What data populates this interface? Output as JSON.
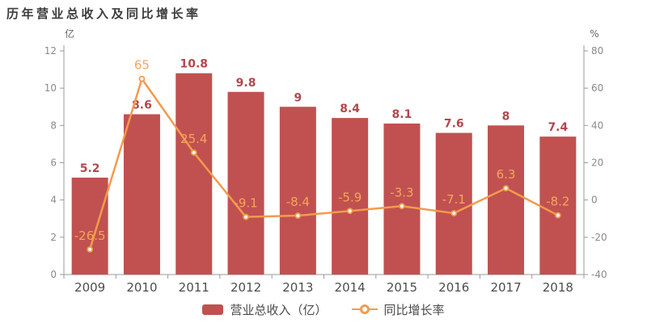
{
  "title": "历年营业总收入及同比增长率",
  "chart_data": {
    "type": "bar+line",
    "categories": [
      "2009",
      "2010",
      "2011",
      "2012",
      "2013",
      "2014",
      "2015",
      "2016",
      "2017",
      "2018"
    ],
    "series": [
      {
        "name": "营业总收入（亿）",
        "type": "bar",
        "axis": "left",
        "values": [
          5.2,
          8.6,
          10.8,
          9.8,
          9,
          8.4,
          8.1,
          7.6,
          8,
          7.4
        ],
        "color": "#c05150",
        "label_color": "#b1484d"
      },
      {
        "name": "同比增长率",
        "type": "line",
        "axis": "right",
        "values": [
          -26.5,
          65,
          25.4,
          -9.1,
          -8.4,
          -5.9,
          -3.3,
          -7.1,
          6.3,
          -8.2
        ],
        "color": "#f49a4c",
        "label_color": "#f7a55c",
        "marker": "circle-white-fill"
      }
    ],
    "left_axis": {
      "name": "亿",
      "min": 0,
      "max": 12,
      "ticks": [
        0,
        2,
        4,
        6,
        8,
        10,
        12
      ]
    },
    "right_axis": {
      "name": "%",
      "min": -40,
      "max": 80,
      "ticks": [
        -40,
        -20,
        0,
        20,
        40,
        60,
        80
      ]
    },
    "grid": false,
    "legend_position": "bottom"
  },
  "style_colors": {
    "axis_line": "#999999",
    "tick_label": "#8a8a8a",
    "x_label": "#4d4d4d",
    "axis_name": "#666666",
    "title": "#3c3c3c",
    "background": "#ffffff"
  }
}
